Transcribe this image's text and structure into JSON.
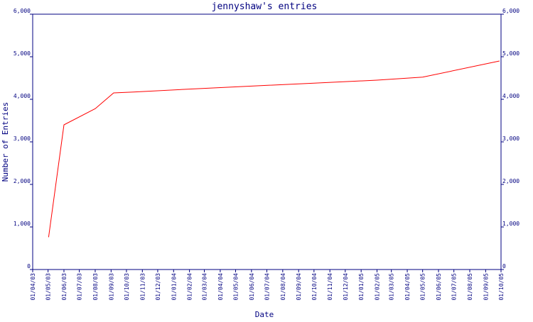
{
  "chart_data": {
    "type": "line",
    "title": "jennyshaw's entries",
    "xlabel": "Date",
    "ylabel": "Number of Entries",
    "ylim": [
      0,
      6000
    ],
    "y_ticks": [
      0,
      1000,
      2000,
      3000,
      4000,
      5000,
      6000
    ],
    "y_tick_labels": [
      "0",
      "1,000",
      "2,000",
      "3,000",
      "4,000",
      "5,000",
      "6,000"
    ],
    "x_tick_labels": [
      "01/04/03",
      "01/05/03",
      "01/06/03",
      "01/07/03",
      "01/08/03",
      "01/09/03",
      "01/10/03",
      "01/11/03",
      "01/12/03",
      "01/01/04",
      "01/02/04",
      "01/03/04",
      "01/04/04",
      "01/05/04",
      "01/06/04",
      "01/07/04",
      "01/08/04",
      "01/09/04",
      "01/10/04",
      "01/11/04",
      "01/12/04",
      "01/01/05",
      "01/02/05",
      "01/03/05",
      "01/04/05",
      "01/05/05",
      "01/06/05",
      "01/07/05",
      "01/08/05",
      "01/09/05",
      "01/10/05"
    ],
    "grid": false,
    "line_color": "#ff0000",
    "axis_color": "#000080",
    "series": [
      {
        "x": [
          "2003-05-02",
          "2003-06-01",
          "2003-08-01",
          "2003-09-06",
          "2003-10-15",
          "2004-02-01",
          "2004-06-01",
          "2004-10-01",
          "2005-02-01",
          "2005-05-01",
          "2005-09-28"
        ],
        "values": [
          760,
          3400,
          3780,
          4150,
          4170,
          4240,
          4310,
          4380,
          4450,
          4520,
          4900
        ]
      }
    ]
  }
}
